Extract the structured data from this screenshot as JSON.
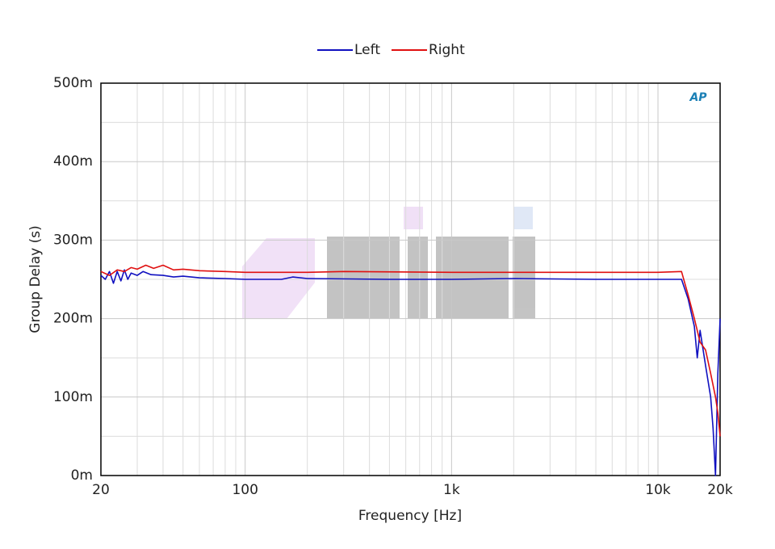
{
  "chart_data": {
    "type": "line",
    "x_label": "Frequency [Hz]",
    "y_label": "Group Delay (s)",
    "logo": "AP",
    "xscale": "log",
    "grid": true,
    "legend": "top",
    "xlim": [
      20,
      20000
    ],
    "xticks": [
      20,
      100,
      {
        "value": 1000,
        "label": "1k"
      },
      {
        "value": 10000,
        "label": "10k"
      },
      {
        "value": 20000,
        "label": "20k"
      }
    ],
    "xminor": [
      30,
      40,
      50,
      60,
      70,
      80,
      90,
      200,
      300,
      400,
      500,
      600,
      700,
      800,
      900,
      2000,
      3000,
      4000,
      5000,
      6000,
      7000,
      8000,
      9000
    ],
    "ylim": [
      0,
      0.5
    ],
    "yticks": [
      {
        "value": 0,
        "label": "0m"
      },
      {
        "value": 0.1,
        "label": "100m"
      },
      {
        "value": 0.2,
        "label": "200m"
      },
      {
        "value": 0.3,
        "label": "300m"
      },
      {
        "value": 0.4,
        "label": "400m"
      },
      {
        "value": 0.5,
        "label": "500m"
      }
    ],
    "yminor": [
      0.05,
      0.15,
      0.25,
      0.35,
      0.45
    ],
    "series": [
      {
        "name": "Left",
        "color": "#1010c0",
        "x": [
          20,
          21,
          22,
          23,
          24,
          25,
          26,
          27,
          28,
          30,
          32,
          35,
          40,
          45,
          50,
          60,
          80,
          100,
          150,
          170,
          200,
          500,
          1000,
          2000,
          5000,
          10000,
          13000,
          14000,
          15000,
          15500,
          16000,
          17000,
          18000,
          18500,
          19000,
          19500,
          20000
        ],
        "values": [
          0.255,
          0.25,
          0.26,
          0.245,
          0.26,
          0.248,
          0.262,
          0.25,
          0.258,
          0.255,
          0.26,
          0.256,
          0.255,
          0.253,
          0.254,
          0.252,
          0.251,
          0.25,
          0.25,
          0.253,
          0.251,
          0.25,
          0.25,
          0.251,
          0.25,
          0.25,
          0.25,
          0.225,
          0.19,
          0.15,
          0.185,
          0.14,
          0.1,
          0.06,
          0.0,
          0.13,
          0.2
        ]
      },
      {
        "name": "Right",
        "color": "#e01010",
        "x": [
          20,
          22,
          24,
          26,
          28,
          30,
          33,
          36,
          40,
          45,
          50,
          60,
          80,
          100,
          200,
          300,
          1000,
          5000,
          10000,
          13000,
          14000,
          15000,
          16000,
          17000,
          18000,
          19000,
          19500,
          20000
        ],
        "values": [
          0.26,
          0.255,
          0.262,
          0.26,
          0.265,
          0.263,
          0.268,
          0.264,
          0.268,
          0.262,
          0.263,
          0.261,
          0.26,
          0.259,
          0.259,
          0.26,
          0.259,
          0.259,
          0.259,
          0.26,
          0.23,
          0.2,
          0.17,
          0.16,
          0.13,
          0.1,
          0.08,
          0.05
        ]
      }
    ]
  }
}
